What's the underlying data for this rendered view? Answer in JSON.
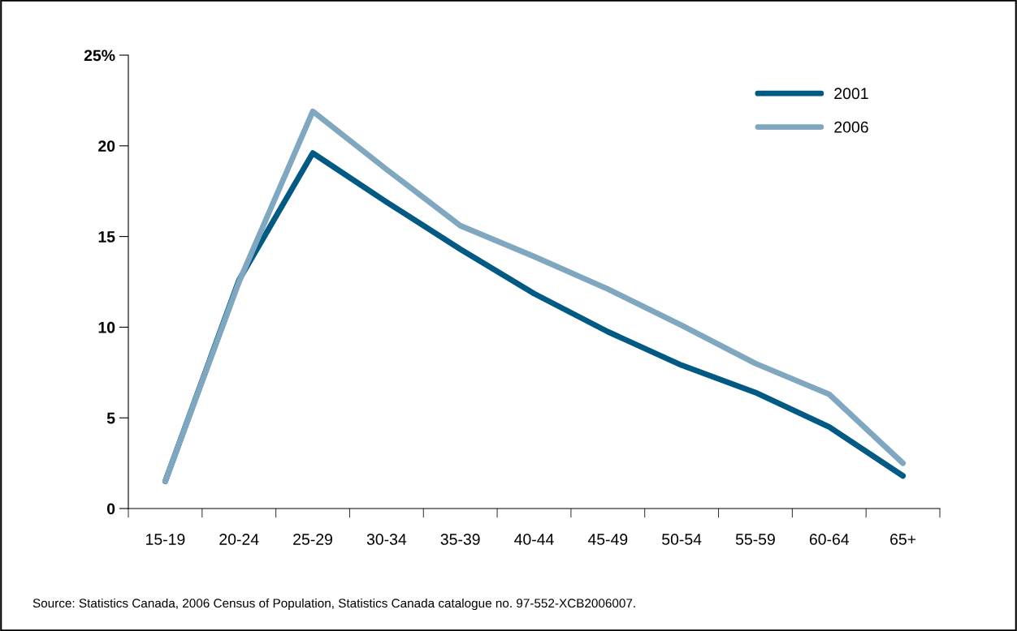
{
  "chart_data": {
    "type": "line",
    "categories": [
      "15-19",
      "20-24",
      "25-29",
      "30-34",
      "35-39",
      "40-44",
      "45-49",
      "50-54",
      "55-59",
      "60-64",
      "65+"
    ],
    "series": [
      {
        "name": "2001",
        "color": "#005a84",
        "values": [
          1.5,
          12.6,
          19.6,
          16.9,
          14.3,
          11.85,
          9.75,
          7.9,
          6.4,
          4.5,
          1.8
        ]
      },
      {
        "name": "2006",
        "color": "#7fa8c0",
        "values": [
          1.5,
          12.5,
          21.9,
          18.7,
          15.6,
          13.9,
          12.1,
          10.1,
          8.0,
          6.3,
          2.5
        ]
      }
    ],
    "ylim": [
      0,
      25
    ],
    "yticks": [
      0,
      5,
      10,
      15,
      20,
      {
        "value": 25,
        "label": "25%"
      }
    ],
    "grid": false,
    "legend": "top right",
    "marker": "none",
    "line_style": "solid",
    "annotations": [
      "Source: Statistics Canada, 2006 Census of Population, Statistics Canada catalogue no. 97-552-XCB2006007."
    ]
  }
}
